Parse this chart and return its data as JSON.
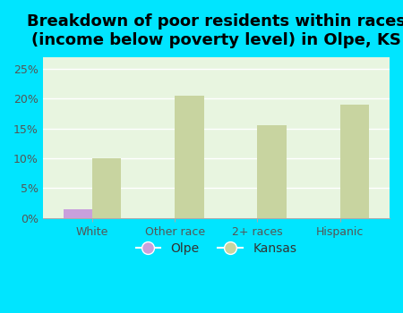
{
  "title": "Breakdown of poor residents within races\n(income below poverty level) in Olpe, KS",
  "categories": [
    "White",
    "Other race",
    "2+ races",
    "Hispanic"
  ],
  "olpe_values": [
    1.5,
    0,
    0,
    0
  ],
  "kansas_values": [
    10.0,
    20.5,
    15.5,
    19.0
  ],
  "olpe_color": "#c9a0dc",
  "kansas_color": "#c8d4a0",
  "background_color": "#00e5ff",
  "chart_bg_color": "#e8f5e0",
  "ylabel_ticks": [
    0,
    5,
    10,
    15,
    20,
    25
  ],
  "ylim": [
    0,
    27
  ],
  "bar_width": 0.35,
  "title_fontsize": 13,
  "tick_fontsize": 9,
  "legend_fontsize": 10
}
